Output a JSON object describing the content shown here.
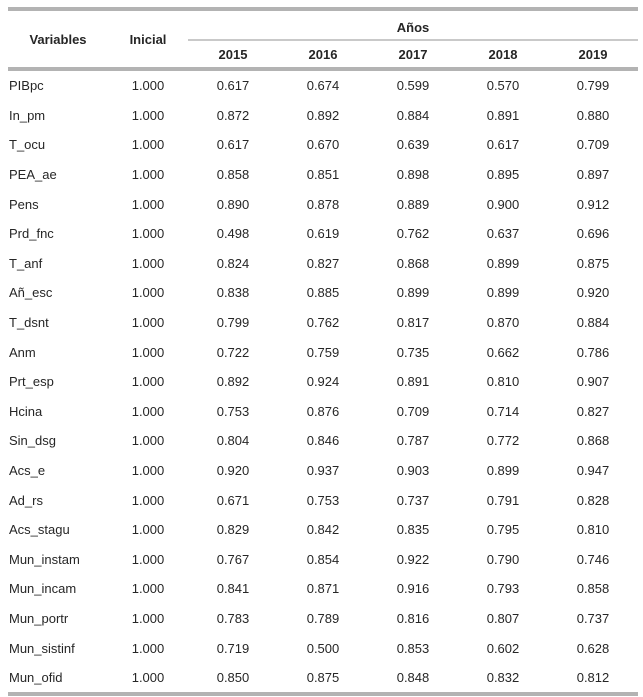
{
  "table": {
    "header": {
      "variables": "Variables",
      "inicial": "Inicial",
      "years_group": "Años"
    },
    "years": [
      "2015",
      "2016",
      "2017",
      "2018",
      "2019"
    ],
    "rows": [
      {
        "variable": "PIBpc",
        "inicial": "1.000",
        "values": [
          "0.617",
          "0.674",
          "0.599",
          "0.570",
          "0.799"
        ]
      },
      {
        "variable": "In_pm",
        "inicial": "1.000",
        "values": [
          "0.872",
          "0.892",
          "0.884",
          "0.891",
          "0.880"
        ]
      },
      {
        "variable": "T_ocu",
        "inicial": "1.000",
        "values": [
          "0.617",
          "0.670",
          "0.639",
          "0.617",
          "0.709"
        ]
      },
      {
        "variable": "PEA_ae",
        "inicial": "1.000",
        "values": [
          "0.858",
          "0.851",
          "0.898",
          "0.895",
          "0.897"
        ]
      },
      {
        "variable": "Pens",
        "inicial": "1.000",
        "values": [
          "0.890",
          "0.878",
          "0.889",
          "0.900",
          "0.912"
        ]
      },
      {
        "variable": "Prd_fnc",
        "inicial": "1.000",
        "values": [
          "0.498",
          "0.619",
          "0.762",
          "0.637",
          "0.696"
        ]
      },
      {
        "variable": "T_anf",
        "inicial": "1.000",
        "values": [
          "0.824",
          "0.827",
          "0.868",
          "0.899",
          "0.875"
        ]
      },
      {
        "variable": "Añ_esc",
        "inicial": "1.000",
        "values": [
          "0.838",
          "0.885",
          "0.899",
          "0.899",
          "0.920"
        ]
      },
      {
        "variable": "T_dsnt",
        "inicial": "1.000",
        "values": [
          "0.799",
          "0.762",
          "0.817",
          "0.870",
          "0.884"
        ]
      },
      {
        "variable": "Anm",
        "inicial": "1.000",
        "values": [
          "0.722",
          "0.759",
          "0.735",
          "0.662",
          "0.786"
        ]
      },
      {
        "variable": "Prt_esp",
        "inicial": "1.000",
        "values": [
          "0.892",
          "0.924",
          "0.891",
          "0.810",
          "0.907"
        ]
      },
      {
        "variable": "Hcina",
        "inicial": "1.000",
        "values": [
          "0.753",
          "0.876",
          "0.709",
          "0.714",
          "0.827"
        ]
      },
      {
        "variable": "Sin_dsg",
        "inicial": "1.000",
        "values": [
          "0.804",
          "0.846",
          "0.787",
          "0.772",
          "0.868"
        ]
      },
      {
        "variable": "Acs_e",
        "inicial": "1.000",
        "values": [
          "0.920",
          "0.937",
          "0.903",
          "0.899",
          "0.947"
        ]
      },
      {
        "variable": "Ad_rs",
        "inicial": "1.000",
        "values": [
          "0.671",
          "0.753",
          "0.737",
          "0.791",
          "0.828"
        ]
      },
      {
        "variable": "Acs_stagu",
        "inicial": "1.000",
        "values": [
          "0.829",
          "0.842",
          "0.835",
          "0.795",
          "0.810"
        ]
      },
      {
        "variable": "Mun_instam",
        "inicial": "1.000",
        "values": [
          "0.767",
          "0.854",
          "0.922",
          "0.790",
          "0.746"
        ]
      },
      {
        "variable": "Mun_incam",
        "inicial": "1.000",
        "values": [
          "0.841",
          "0.871",
          "0.916",
          "0.793",
          "0.858"
        ]
      },
      {
        "variable": "Mun_portr",
        "inicial": "1.000",
        "values": [
          "0.783",
          "0.789",
          "0.816",
          "0.807",
          "0.737"
        ]
      },
      {
        "variable": "Mun_sistinf",
        "inicial": "1.000",
        "values": [
          "0.719",
          "0.500",
          "0.853",
          "0.602",
          "0.628"
        ]
      },
      {
        "variable": "Mun_ofid",
        "inicial": "1.000",
        "values": [
          "0.850",
          "0.875",
          "0.848",
          "0.832",
          "0.812"
        ]
      }
    ],
    "colors": {
      "rule_thick": "#b3b3b3",
      "rule_thin": "#c9c9c9",
      "text": "#262626"
    }
  }
}
